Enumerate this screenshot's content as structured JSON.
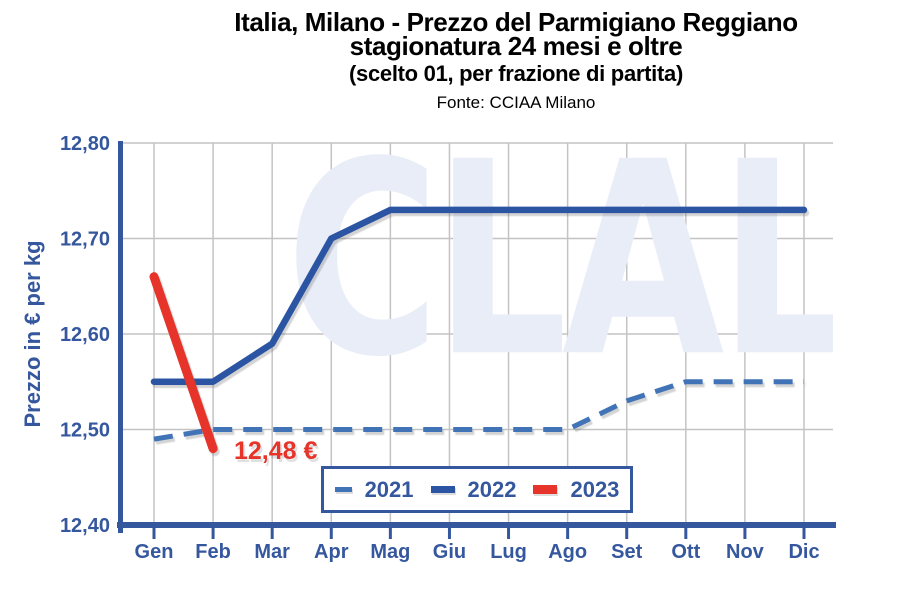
{
  "header": {
    "title_line1": "Italia, Milano - Prezzo del Parmigiano Reggiano",
    "title_line2": "stagionatura 24 mesi e oltre",
    "subtitle": "(scelto 01, per frazione di partita)",
    "source": "Fonte: CCIAA Milano"
  },
  "watermark": "CLAL",
  "annotation": {
    "label": "12,48 €"
  },
  "colors": {
    "title_text": "#000000",
    "axis_text": "#35579E",
    "axis_line": "#35579E",
    "grid": "#C3C3C3",
    "watermark": "#E9EDF8",
    "annotation": "#E6342A",
    "legend_border": "#35579E"
  },
  "chart_data": {
    "type": "line",
    "title": "Italia, Milano - Prezzo del Parmigiano Reggiano stagionatura 24 mesi e oltre (scelto 01, per frazione di partita)",
    "source": "Fonte: CCIAA Milano",
    "xlabel": "",
    "ylabel": "Prezzo in € per kg",
    "ylim": [
      12.4,
      12.8
    ],
    "yticks": [
      {
        "value": 12.4,
        "label": "12,40"
      },
      {
        "value": 12.5,
        "label": "12,50"
      },
      {
        "value": 12.6,
        "label": "12,60"
      },
      {
        "value": 12.7,
        "label": "12,70"
      },
      {
        "value": 12.8,
        "label": "12,80"
      }
    ],
    "categories": [
      "Gen",
      "Feb",
      "Mar",
      "Apr",
      "Mag",
      "Giu",
      "Lug",
      "Ago",
      "Set",
      "Ott",
      "Nov",
      "Dic"
    ],
    "grid": true,
    "legend_position": "bottom-inside",
    "series": [
      {
        "name": "2021",
        "style": "dashed",
        "color": "#4173B7",
        "width": 5,
        "values": [
          12.49,
          12.5,
          12.5,
          12.5,
          12.5,
          12.5,
          12.5,
          12.5,
          12.53,
          12.55,
          12.55,
          12.55
        ]
      },
      {
        "name": "2022",
        "style": "solid",
        "color": "#2B55A3",
        "width": 6.5,
        "values": [
          12.55,
          12.55,
          12.59,
          12.7,
          12.73,
          12.73,
          12.73,
          12.73,
          12.73,
          12.73,
          12.73,
          12.73
        ]
      },
      {
        "name": "2023",
        "style": "solid",
        "color": "#E6342A",
        "width": 9,
        "values": [
          12.66,
          12.48,
          null,
          null,
          null,
          null,
          null,
          null,
          null,
          null,
          null,
          null
        ]
      }
    ],
    "annotation": {
      "text": "12,48 €",
      "attached_series": "2023",
      "category": "Feb",
      "value": 12.48
    }
  }
}
